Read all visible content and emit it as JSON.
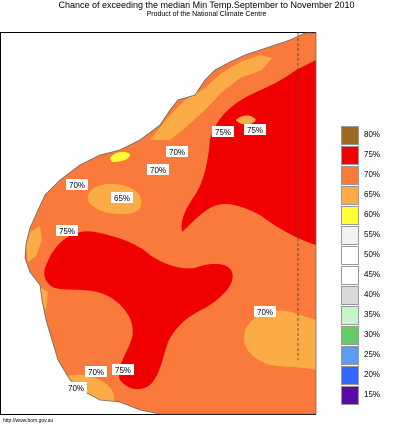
{
  "title": "Chance of exceeding the median Min Temp.September to November 2010",
  "subtitle": "Product of the National Climate Centre",
  "footer": "http://www.bom.gov.au",
  "colors": {
    "water": "#ffffff",
    "base_70": "#f97a3b",
    "pale_65": "#fbac46",
    "red_75": "#f00000",
    "yellow_60": "#ffff33"
  },
  "legend": [
    {
      "label": "80%",
      "color": "#9c6a21"
    },
    {
      "label": "75%",
      "color": "#f00000"
    },
    {
      "label": "70%",
      "color": "#f97a3b"
    },
    {
      "label": "65%",
      "color": "#fbac46"
    },
    {
      "label": "60%",
      "color": "#ffff33"
    },
    {
      "label": "55%",
      "color": "#f2f2f2"
    },
    {
      "label": "50%",
      "color": "#ffffff"
    },
    {
      "label": "45%",
      "color": "#ffffff"
    },
    {
      "label": "40%",
      "color": "#d9d9d9"
    },
    {
      "label": "35%",
      "color": "#c8f5c8"
    },
    {
      "label": "30%",
      "color": "#66cc66"
    },
    {
      "label": "25%",
      "color": "#5a9ef0"
    },
    {
      "label": "20%",
      "color": "#3366ff"
    },
    {
      "label": "15%",
      "color": "#5a0aa8"
    }
  ],
  "map_labels": [
    {
      "text": "75%"
    },
    {
      "text": "75%"
    },
    {
      "text": "70%"
    },
    {
      "text": "70%"
    },
    {
      "text": "70%"
    },
    {
      "text": "65%"
    },
    {
      "text": "75%"
    },
    {
      "text": "70%"
    },
    {
      "text": "70%"
    },
    {
      "text": "75%"
    },
    {
      "text": "70%"
    }
  ]
}
